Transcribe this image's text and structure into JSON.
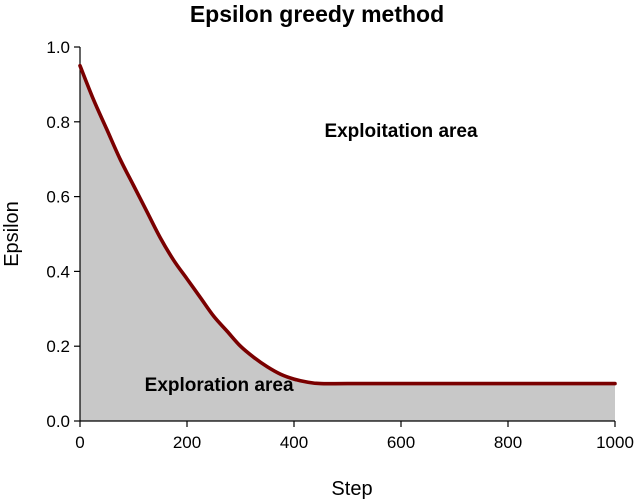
{
  "chart_data": {
    "type": "area",
    "title": "Epsilon greedy method",
    "xlabel": "Step",
    "ylabel": "Epsilon",
    "xlim": [
      0,
      1000
    ],
    "ylim": [
      0,
      1.0
    ],
    "xticks": [
      0,
      200,
      400,
      600,
      800,
      1000
    ],
    "xtick_labels": [
      "0",
      "200",
      "400",
      "600",
      "800",
      "1000"
    ],
    "yticks": [
      0,
      0.2,
      0.4,
      0.6,
      0.8,
      1.0
    ],
    "ytick_labels": [
      "0.0",
      "0.2",
      "0.4",
      "0.6",
      "0.8",
      "1.0"
    ],
    "grid": false,
    "series": [
      {
        "x": [
          0,
          25,
          50,
          75,
          100,
          125,
          150,
          175,
          200,
          225,
          250,
          275,
          300,
          325,
          350,
          375,
          400,
          425,
          450,
          500,
          600,
          700,
          800,
          900,
          1000
        ],
        "y": [
          0.95,
          0.86,
          0.78,
          0.7,
          0.63,
          0.56,
          0.49,
          0.43,
          0.38,
          0.33,
          0.28,
          0.24,
          0.2,
          0.17,
          0.145,
          0.125,
          0.112,
          0.104,
          0.1,
          0.1,
          0.1,
          0.1,
          0.1,
          0.1,
          0.1
        ],
        "color": "#7a0000",
        "fill_below": "#c8c8c8"
      }
    ],
    "annotations": [
      {
        "text": "Exploitation area",
        "x": 600,
        "y": 0.76
      },
      {
        "text": "Exploration area",
        "x": 260,
        "y": 0.08
      }
    ]
  }
}
